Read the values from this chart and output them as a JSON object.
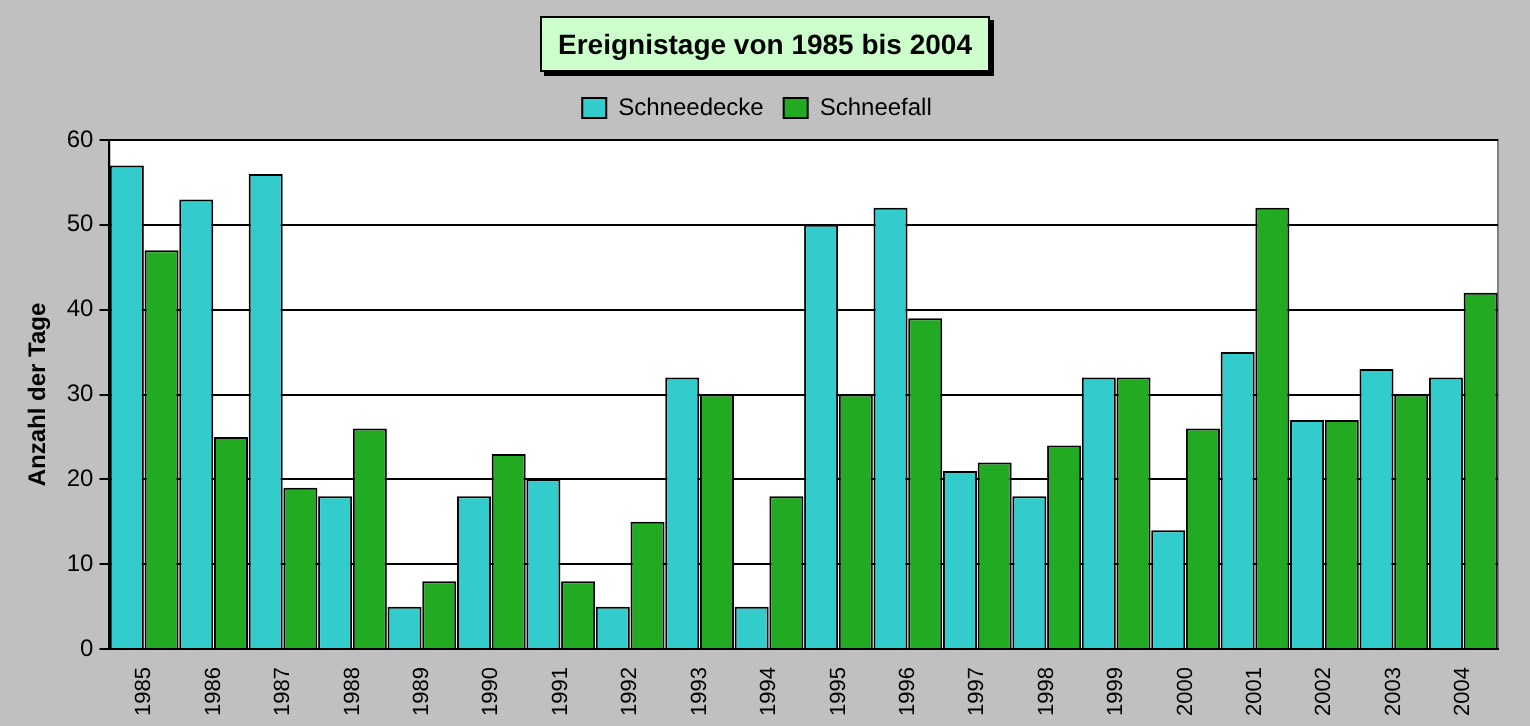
{
  "chart_data": {
    "type": "bar",
    "title": "Ereignistage von 1985 bis 2004",
    "ylabel": "Anzahl der Tage",
    "categories": [
      "1985",
      "1986",
      "1987",
      "1988",
      "1989",
      "1990",
      "1991",
      "1992",
      "1993",
      "1994",
      "1995",
      "1996",
      "1997",
      "1998",
      "1999",
      "2000",
      "2001",
      "2002",
      "2003",
      "2004"
    ],
    "series": [
      {
        "name": "Schneedecke",
        "color": "#33cccc",
        "values": [
          57,
          53,
          56,
          18,
          5,
          18,
          20,
          5,
          32,
          5,
          50,
          52,
          21,
          18,
          32,
          14,
          35,
          27,
          33,
          32
        ]
      },
      {
        "name": "Schneefall",
        "color": "#22aa22",
        "values": [
          47,
          25,
          19,
          26,
          8,
          23,
          8,
          15,
          30,
          18,
          30,
          39,
          22,
          24,
          32,
          26,
          52,
          27,
          30,
          42
        ]
      }
    ],
    "ylim": [
      0,
      60
    ],
    "yticks": [
      0,
      10,
      20,
      30,
      40,
      50,
      60
    ],
    "grid": "y",
    "legend": "top"
  }
}
